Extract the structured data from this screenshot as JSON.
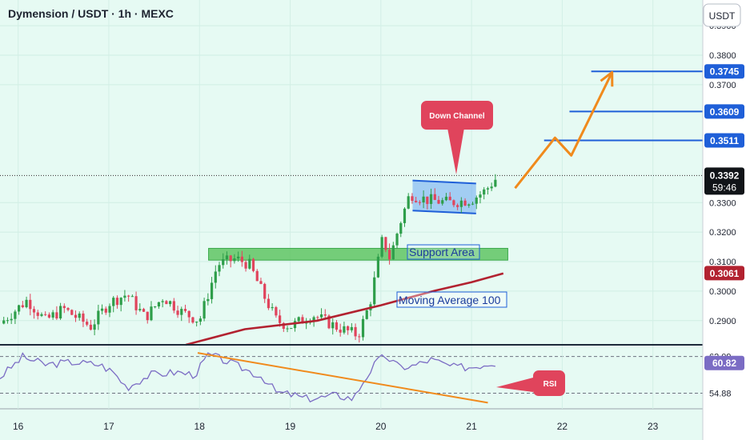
{
  "header": {
    "symbol_title": "Dymension / USDT · 1h · MEXC",
    "currency_button": "USDT"
  },
  "colors": {
    "up": "#2e9e4a",
    "down": "#e0445c",
    "ma": "#b22230",
    "accent": "#1f5fd8",
    "rsi": "#7b6cc4",
    "trend": "#f08a1c",
    "support": "#5fc463",
    "callout": "#e0445c",
    "bg": "#e6faf3",
    "scale_bg": "#ffffff"
  },
  "chart_data": [
    {
      "type": "candlestick",
      "title": "Dymension / USDT · 1h · MEXC",
      "ylim": [
        0.2818,
        0.3987
      ],
      "xlim": [
        15.8,
        23.55
      ],
      "x_ticks": [
        16,
        17,
        18,
        19,
        20,
        21,
        22,
        23
      ],
      "y_ticks": [
        0.29,
        0.3,
        0.31,
        0.32,
        0.33,
        0.37,
        0.38,
        0.39
      ],
      "y_tick_labels": [
        "0.2900",
        "0.3000",
        "0.3100",
        "0.3200",
        "0.3300",
        "0.3700",
        "0.3800",
        "0.3900"
      ],
      "price_anchors": [
        [
          15.8,
          0.289
        ],
        [
          16.1,
          0.297
        ],
        [
          16.3,
          0.29
        ],
        [
          16.5,
          0.294
        ],
        [
          16.8,
          0.288
        ],
        [
          17.0,
          0.296
        ],
        [
          17.2,
          0.299
        ],
        [
          17.4,
          0.291
        ],
        [
          17.6,
          0.298
        ],
        [
          17.8,
          0.293
        ],
        [
          18.0,
          0.29
        ],
        [
          18.2,
          0.309
        ],
        [
          18.4,
          0.311
        ],
        [
          18.55,
          0.309
        ],
        [
          18.7,
          0.299
        ],
        [
          18.85,
          0.29
        ],
        [
          19.0,
          0.288
        ],
        [
          19.25,
          0.292
        ],
        [
          19.5,
          0.288
        ],
        [
          19.75,
          0.285
        ],
        [
          19.88,
          0.296
        ],
        [
          19.95,
          0.307
        ],
        [
          20.02,
          0.318
        ],
        [
          20.1,
          0.311
        ],
        [
          20.2,
          0.322
        ],
        [
          20.32,
          0.333
        ],
        [
          20.5,
          0.331
        ],
        [
          20.75,
          0.33
        ],
        [
          21.0,
          0.331
        ],
        [
          21.15,
          0.334
        ],
        [
          21.3,
          0.3392
        ]
      ],
      "candle_step": 0.0417,
      "annotations": [
        {
          "text": "Down Channel",
          "kind": "callout"
        },
        {
          "text": "Support Area",
          "kind": "zone",
          "y_range": [
            0.3105,
            0.3145
          ],
          "x_range": [
            18.1,
            21.4
          ]
        },
        {
          "text": "Moving Average 100",
          "kind": "label"
        },
        {
          "text": "RSI",
          "kind": "callout"
        }
      ],
      "channel": {
        "upper": [
          [
            20.35,
            0.3375
          ],
          [
            21.05,
            0.3365
          ]
        ],
        "lower": [
          [
            20.35,
            0.3273
          ],
          [
            21.05,
            0.3263
          ]
        ]
      },
      "moving_average_100": [
        [
          17.85,
          0.2818
        ],
        [
          18.5,
          0.2871
        ],
        [
          19.3,
          0.29
        ],
        [
          20.0,
          0.2952
        ],
        [
          20.6,
          0.3002
        ],
        [
          21.0,
          0.303
        ],
        [
          21.35,
          0.306
        ]
      ],
      "projection": [
        [
          21.48,
          0.3349
        ],
        [
          21.92,
          0.352
        ],
        [
          22.1,
          0.346
        ],
        [
          22.55,
          0.3742
        ]
      ],
      "target_lines": [
        {
          "value": 0.3511,
          "label": "0.3511",
          "x_from": 21.8
        },
        {
          "value": 0.3609,
          "label": "0.3609",
          "x_from": 22.08
        },
        {
          "value": 0.3745,
          "label": "0.3745",
          "x_from": 22.32
        }
      ],
      "current": {
        "value": 0.3392,
        "label": "0.3392",
        "countdown": "59:46"
      },
      "ma_label": "0.3061"
    },
    {
      "type": "line",
      "title": "RSI",
      "ylim": [
        51.8,
        64.4
      ],
      "y_levels": [
        62.09,
        54.88
      ],
      "y_level_labels": [
        "62.09",
        "54.88"
      ],
      "current": {
        "value": 60.82,
        "label": "60.82"
      },
      "rsi_anchors": [
        [
          15.8,
          58.0
        ],
        [
          16.05,
          62.0
        ],
        [
          16.3,
          60.5
        ],
        [
          16.6,
          61.0
        ],
        [
          16.9,
          60.5
        ],
        [
          17.05,
          59.0
        ],
        [
          17.2,
          56.0
        ],
        [
          17.45,
          58.5
        ],
        [
          17.75,
          59.0
        ],
        [
          17.95,
          58.5
        ],
        [
          18.1,
          62.5
        ],
        [
          18.25,
          61.5
        ],
        [
          18.45,
          60.0
        ],
        [
          18.7,
          58.0
        ],
        [
          18.85,
          55.0
        ],
        [
          19.05,
          54.5
        ],
        [
          19.15,
          53.8
        ],
        [
          19.35,
          54.0
        ],
        [
          19.5,
          54.5
        ],
        [
          19.7,
          53.8
        ],
        [
          19.8,
          57.0
        ],
        [
          19.95,
          61.0
        ],
        [
          20.05,
          62.2
        ],
        [
          20.2,
          60.0
        ],
        [
          20.35,
          60.2
        ],
        [
          20.55,
          61.5
        ],
        [
          20.8,
          60.0
        ],
        [
          21.0,
          60.0
        ],
        [
          21.2,
          60.8
        ],
        [
          21.3,
          60.8
        ]
      ],
      "trend_line": [
        [
          17.98,
          62.8
        ],
        [
          21.18,
          53.0
        ]
      ]
    }
  ]
}
